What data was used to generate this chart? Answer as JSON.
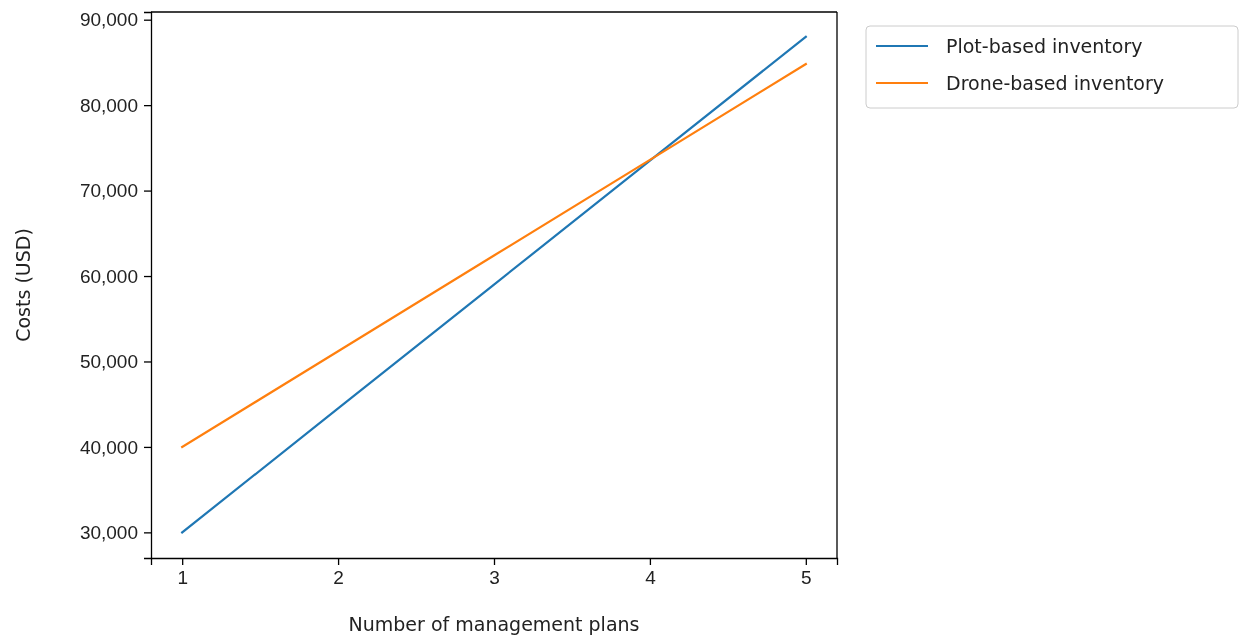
{
  "chart_data": {
    "type": "line",
    "xlabel": "Number of management plans",
    "ylabel": "Costs (USD)",
    "x": [
      1,
      2,
      3,
      4,
      5
    ],
    "series": [
      {
        "name": "Plot-based inventory",
        "color": "#1f77b4",
        "values": [
          30000,
          44500,
          59000,
          73500,
          88000
        ]
      },
      {
        "name": "Drone-based inventory",
        "color": "#ff7f0e",
        "values": [
          40000,
          51200,
          62400,
          73600,
          84800
        ]
      }
    ],
    "xlim": [
      0.8,
      5.2
    ],
    "xticks": [
      1,
      2,
      3,
      4,
      5
    ],
    "ylim": [
      27000,
      90900
    ],
    "yticks": [
      {
        "value": 30000,
        "label": "30,000"
      },
      {
        "value": 40000,
        "label": "40,000"
      },
      {
        "value": 50000,
        "label": "50,000"
      },
      {
        "value": 60000,
        "label": "60,000"
      },
      {
        "value": 70000,
        "label": "70,000"
      },
      {
        "value": 80000,
        "label": "80,000"
      },
      {
        "value": 90000,
        "label": "90,000"
      }
    ],
    "legend": "top right",
    "grid": false,
    "line_style": "solid",
    "marker": "none"
  }
}
